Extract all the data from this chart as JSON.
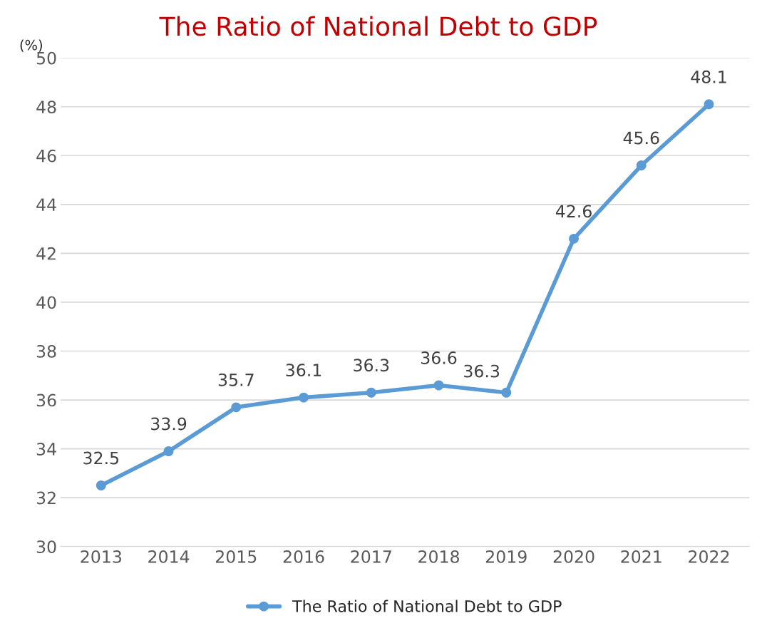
{
  "chart_data": {
    "type": "line",
    "title": "The Ratio of National Debt to GDP",
    "ylabel": "(%)",
    "categories": [
      "2013",
      "2014",
      "2015",
      "2016",
      "2017",
      "2018",
      "2019",
      "2020",
      "2021",
      "2022"
    ],
    "series": [
      {
        "name": "The Ratio of National Debt to GDP",
        "color": "#5b9bd5",
        "values": [
          32.5,
          33.9,
          35.7,
          36.1,
          36.3,
          36.6,
          36.3,
          42.6,
          45.6,
          48.1
        ]
      }
    ],
    "ylim": [
      30,
      50
    ],
    "yticks": [
      30,
      32,
      34,
      36,
      38,
      40,
      42,
      44,
      46,
      48,
      50
    ],
    "grid": "y",
    "legend": "bottom",
    "marker": "circle",
    "line_style": "solid",
    "data_labels": true
  }
}
